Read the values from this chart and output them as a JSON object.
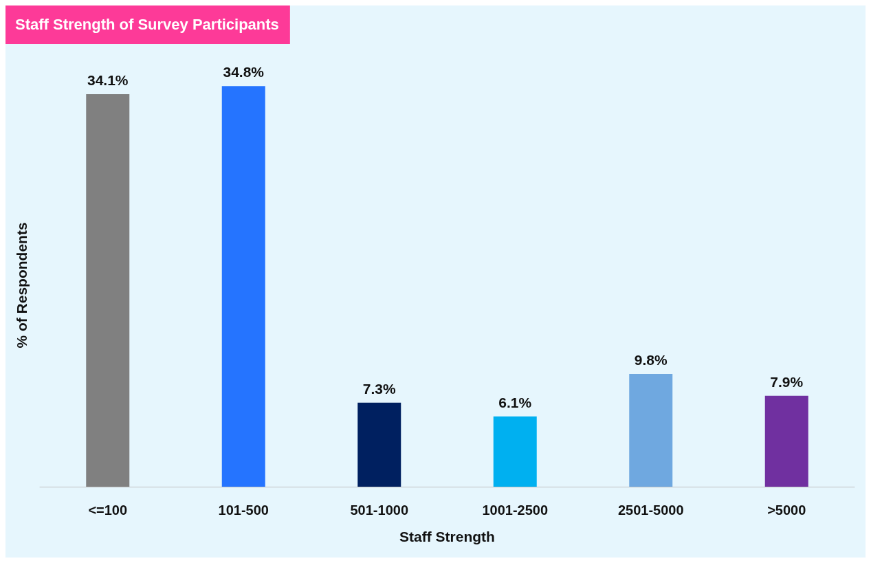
{
  "chart_data": {
    "type": "bar",
    "title": "Staff Strength of Survey Participants",
    "xlabel": "Staff Strength",
    "ylabel": "% of Respondents",
    "categories": [
      "<=100",
      "101-500",
      "501-1000",
      "1001-2500",
      "2501-5000",
      ">5000"
    ],
    "values": [
      34.1,
      34.8,
      7.3,
      6.1,
      9.8,
      7.9
    ],
    "colors": [
      "#808080",
      "#2574ff",
      "#002060",
      "#00b0f0",
      "#6fa8e0",
      "#7030a0"
    ],
    "value_labels": [
      "34.1%",
      "34.8%",
      "7.3%",
      "6.1%",
      "9.8%",
      "7.9%"
    ]
  }
}
